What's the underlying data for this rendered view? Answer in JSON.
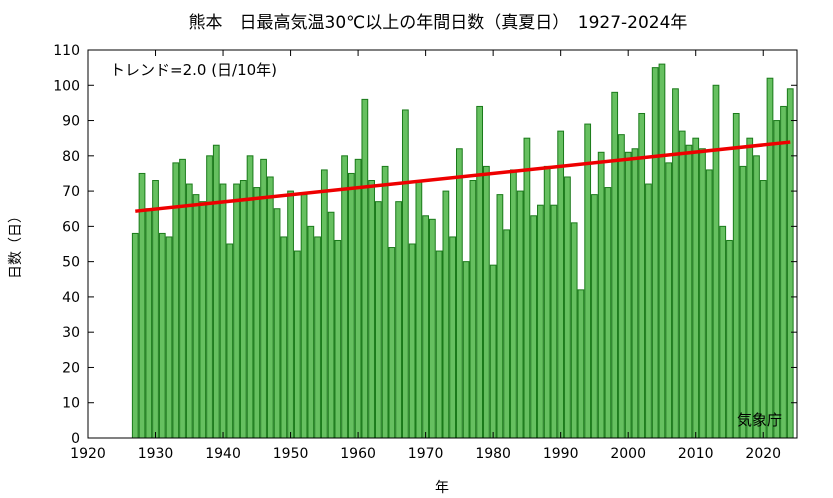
{
  "chart_data": {
    "type": "bar",
    "title": "熊本　日最高気温30℃以上の年間日数（真夏日）　1927-2024年",
    "xlabel": "年",
    "ylabel": "日数（日）",
    "trend_label": "トレンド=2.0 (日/10年)",
    "source_label": "気象庁",
    "xlim": [
      1920,
      2025
    ],
    "ylim": [
      0,
      110
    ],
    "x_ticks": [
      1920,
      1930,
      1940,
      1950,
      1960,
      1970,
      1980,
      1990,
      2000,
      2010,
      2020
    ],
    "y_ticks": [
      0,
      10,
      20,
      30,
      40,
      50,
      60,
      70,
      80,
      90,
      100,
      110
    ],
    "grid": false,
    "bar_fill": "#66c060",
    "bar_stroke": "#1a7a1a",
    "trend_color": "#ee0000",
    "trend": {
      "start": [
        1927,
        64.3
      ],
      "end": [
        2024,
        83.9
      ],
      "slope_per_decade": 2.0
    },
    "years": [
      1927,
      1928,
      1929,
      1930,
      1931,
      1932,
      1933,
      1934,
      1935,
      1936,
      1937,
      1938,
      1939,
      1940,
      1941,
      1942,
      1943,
      1944,
      1945,
      1946,
      1947,
      1948,
      1949,
      1950,
      1951,
      1952,
      1953,
      1954,
      1955,
      1956,
      1957,
      1958,
      1959,
      1960,
      1961,
      1962,
      1963,
      1964,
      1965,
      1966,
      1967,
      1968,
      1969,
      1970,
      1971,
      1972,
      1973,
      1974,
      1975,
      1976,
      1977,
      1978,
      1979,
      1980,
      1981,
      1982,
      1983,
      1984,
      1985,
      1986,
      1987,
      1988,
      1989,
      1990,
      1991,
      1992,
      1993,
      1994,
      1995,
      1996,
      1997,
      1998,
      1999,
      2000,
      2001,
      2002,
      2003,
      2004,
      2005,
      2006,
      2007,
      2008,
      2009,
      2010,
      2011,
      2012,
      2013,
      2014,
      2015,
      2016,
      2017,
      2018,
      2019,
      2020,
      2021,
      2022,
      2023,
      2024
    ],
    "values": [
      58,
      75,
      65,
      73,
      58,
      57,
      78,
      79,
      72,
      69,
      67,
      80,
      83,
      72,
      55,
      72,
      73,
      80,
      71,
      79,
      74,
      65,
      57,
      70,
      53,
      69,
      60,
      57,
      76,
      64,
      56,
      80,
      75,
      79,
      96,
      73,
      67,
      77,
      54,
      67,
      93,
      55,
      73,
      63,
      62,
      53,
      70,
      57,
      82,
      50,
      73,
      94,
      77,
      49,
      69,
      59,
      76,
      70,
      85,
      63,
      66,
      77,
      66,
      87,
      74,
      61,
      42,
      89,
      69,
      81,
      71,
      98,
      86,
      81,
      82,
      92,
      72,
      105,
      106,
      78,
      99,
      87,
      83,
      85,
      82,
      76,
      100,
      60,
      56,
      92,
      77,
      85,
      80,
      73,
      102,
      90,
      94,
      99
    ]
  }
}
